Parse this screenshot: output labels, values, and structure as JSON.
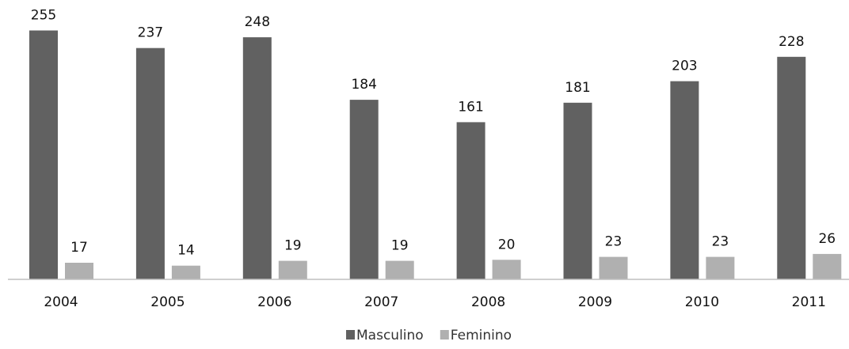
{
  "chart_data": {
    "type": "bar",
    "title": "",
    "xlabel": "",
    "ylabel": "",
    "categories": [
      "2004",
      "2005",
      "2006",
      "2007",
      "2008",
      "2009",
      "2010",
      "2011"
    ],
    "series": [
      {
        "name": "Masculino",
        "color": "#616161",
        "values": [
          255,
          237,
          248,
          184,
          161,
          181,
          203,
          228
        ]
      },
      {
        "name": "Feminino",
        "color": "#b0b0b0",
        "values": [
          17,
          14,
          19,
          19,
          20,
          23,
          23,
          26
        ]
      }
    ],
    "ylim": [
      0,
      270
    ],
    "grid": false,
    "data_labels": true,
    "legend_position": "bottom",
    "axis_color": "#bfbfbf"
  }
}
